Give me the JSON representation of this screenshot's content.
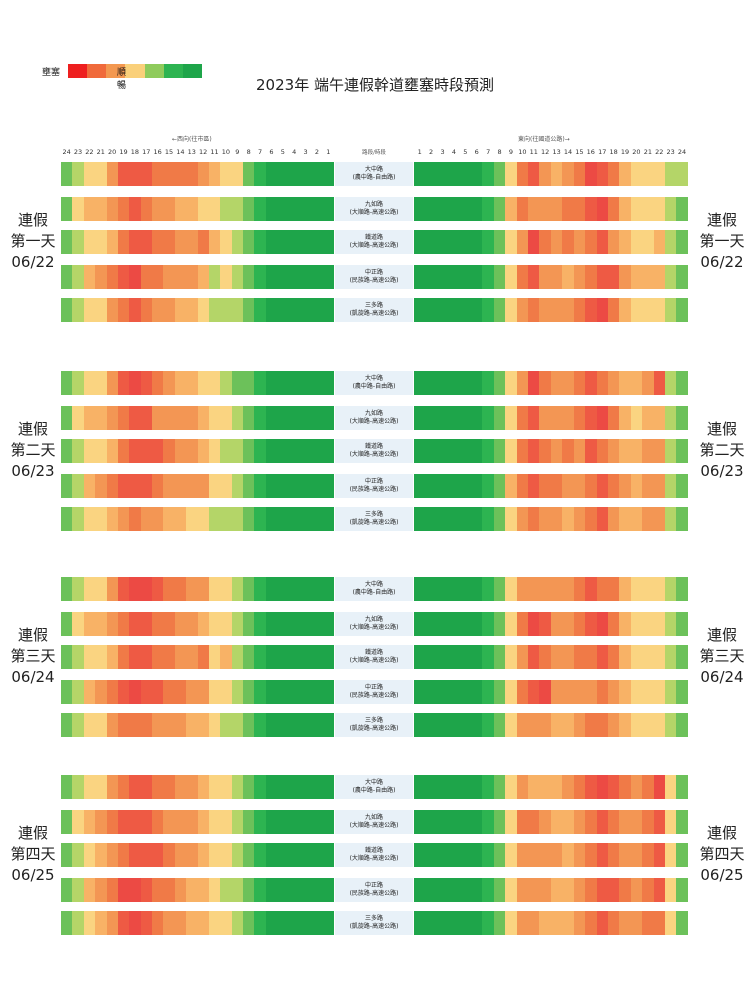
{
  "title": "2023年 端午連假幹道壅塞時段預測",
  "legend": {
    "congested_label": "壅塞",
    "smooth_label": "順暢",
    "colors": [
      "#ee1f1f",
      "#f06a3b",
      "#f39850",
      "#fad07a",
      "#8fcb5c",
      "#2db451",
      "#1ea54a"
    ]
  },
  "header": {
    "west_label": "←西向(往市區)",
    "east_label": "東向(往國道公路)→",
    "road_header": "路段/時段"
  },
  "hours_west": [
    "24",
    "23",
    "22",
    "21",
    "20",
    "19",
    "18",
    "17",
    "16",
    "15",
    "14",
    "13",
    "12",
    "11",
    "10",
    "9",
    "8",
    "7",
    "6",
    "5",
    "4",
    "3",
    "2",
    "1"
  ],
  "hours_east": [
    "1",
    "2",
    "3",
    "4",
    "5",
    "6",
    "7",
    "8",
    "9",
    "10",
    "11",
    "12",
    "13",
    "14",
    "15",
    "16",
    "17",
    "18",
    "19",
    "20",
    "21",
    "22",
    "23",
    "24"
  ],
  "roads": [
    {
      "name": "大中路",
      "segment": "(農中路-自由路)"
    },
    {
      "name": "九如路",
      "segment": "(大順路-高速公路)"
    },
    {
      "name": "鐵道路",
      "segment": "(大順路-高速公路)"
    },
    {
      "name": "中正路",
      "segment": "(民族路-高速公路)"
    },
    {
      "name": "三多路",
      "segment": "(凱旋路-高速公路)"
    }
  ],
  "palette": [
    "#1ea54a",
    "#2db451",
    "#6cc15a",
    "#b4d568",
    "#fad481",
    "#f8b266",
    "#f39654",
    "#f07a47",
    "#ee5a44",
    "#ec4a44"
  ],
  "chart_data": {
    "type": "heatmap",
    "x_west": [
      "24",
      "23",
      "22",
      "21",
      "20",
      "19",
      "18",
      "17",
      "16",
      "15",
      "14",
      "13",
      "12",
      "11",
      "10",
      "9",
      "8",
      "7",
      "6",
      "5",
      "4",
      "3",
      "2",
      "1"
    ],
    "x_east": [
      "1",
      "2",
      "3",
      "4",
      "5",
      "6",
      "7",
      "8",
      "9",
      "10",
      "11",
      "12",
      "13",
      "14",
      "15",
      "16",
      "17",
      "18",
      "19",
      "20",
      "21",
      "22",
      "23",
      "24"
    ],
    "scale": "0 = 順暢 ... 9 = 壅塞",
    "days": [
      {
        "label1": "連假",
        "label2": "第一天",
        "date": "06/22",
        "west": [
          [
            2,
            3,
            4,
            4,
            6,
            8,
            8,
            8,
            7,
            7,
            7,
            7,
            6,
            5,
            4,
            4,
            2,
            1,
            0,
            0,
            0,
            0,
            0,
            0
          ],
          [
            2,
            4,
            5,
            5,
            6,
            7,
            8,
            7,
            6,
            6,
            5,
            5,
            4,
            4,
            3,
            3,
            2,
            1,
            0,
            0,
            0,
            0,
            0,
            0
          ],
          [
            2,
            3,
            4,
            4,
            5,
            7,
            8,
            8,
            7,
            7,
            6,
            6,
            7,
            5,
            4,
            3,
            2,
            1,
            0,
            0,
            0,
            0,
            0,
            0
          ],
          [
            2,
            3,
            5,
            6,
            7,
            8,
            9,
            7,
            7,
            6,
            6,
            6,
            5,
            3,
            4,
            3,
            2,
            1,
            0,
            0,
            0,
            0,
            0,
            0
          ],
          [
            2,
            3,
            4,
            4,
            6,
            7,
            8,
            7,
            6,
            6,
            5,
            5,
            4,
            3,
            3,
            3,
            2,
            1,
            0,
            0,
            0,
            0,
            0,
            0
          ]
        ],
        "east": [
          [
            0,
            0,
            0,
            0,
            0,
            0,
            1,
            2,
            4,
            7,
            8,
            6,
            5,
            6,
            7,
            9,
            8,
            7,
            5,
            4,
            4,
            4,
            3,
            3
          ],
          [
            0,
            0,
            0,
            0,
            0,
            0,
            1,
            2,
            5,
            7,
            6,
            6,
            6,
            7,
            7,
            8,
            9,
            7,
            5,
            4,
            4,
            4,
            3,
            2
          ],
          [
            0,
            0,
            0,
            0,
            0,
            0,
            1,
            2,
            4,
            6,
            9,
            7,
            6,
            7,
            6,
            7,
            8,
            6,
            5,
            4,
            4,
            5,
            3,
            2
          ],
          [
            0,
            0,
            0,
            0,
            0,
            0,
            1,
            2,
            4,
            7,
            8,
            6,
            6,
            5,
            6,
            7,
            8,
            8,
            6,
            5,
            5,
            5,
            3,
            2
          ],
          [
            0,
            0,
            0,
            0,
            0,
            0,
            1,
            2,
            4,
            6,
            7,
            6,
            6,
            6,
            7,
            8,
            9,
            7,
            5,
            4,
            4,
            4,
            3,
            2
          ]
        ]
      },
      {
        "label1": "連假",
        "label2": "第二天",
        "date": "06/23",
        "west": [
          [
            2,
            3,
            4,
            4,
            6,
            8,
            9,
            8,
            7,
            6,
            5,
            5,
            4,
            4,
            3,
            2,
            2,
            1,
            0,
            0,
            0,
            0,
            0,
            0
          ],
          [
            2,
            4,
            5,
            5,
            6,
            7,
            8,
            8,
            6,
            6,
            6,
            6,
            5,
            4,
            4,
            3,
            2,
            1,
            0,
            0,
            0,
            0,
            0,
            0
          ],
          [
            2,
            3,
            4,
            4,
            5,
            7,
            8,
            8,
            8,
            7,
            6,
            6,
            5,
            4,
            3,
            3,
            2,
            1,
            0,
            0,
            0,
            0,
            0,
            0
          ],
          [
            2,
            3,
            5,
            6,
            7,
            8,
            8,
            8,
            7,
            6,
            6,
            6,
            6,
            4,
            4,
            3,
            2,
            1,
            0,
            0,
            0,
            0,
            0,
            0
          ],
          [
            2,
            3,
            4,
            4,
            5,
            6,
            7,
            6,
            6,
            5,
            5,
            4,
            4,
            3,
            3,
            3,
            2,
            1,
            0,
            0,
            0,
            0,
            0,
            0
          ]
        ],
        "east": [
          [
            0,
            0,
            0,
            0,
            0,
            0,
            1,
            2,
            4,
            6,
            9,
            7,
            6,
            6,
            7,
            8,
            7,
            6,
            5,
            5,
            6,
            8,
            3,
            2
          ],
          [
            0,
            0,
            0,
            0,
            0,
            0,
            1,
            2,
            4,
            7,
            8,
            6,
            6,
            6,
            7,
            8,
            9,
            7,
            5,
            4,
            5,
            5,
            3,
            2
          ],
          [
            0,
            0,
            0,
            0,
            0,
            0,
            1,
            2,
            4,
            7,
            8,
            7,
            6,
            7,
            6,
            8,
            7,
            6,
            5,
            5,
            6,
            6,
            3,
            2
          ],
          [
            0,
            0,
            0,
            0,
            0,
            0,
            1,
            2,
            5,
            7,
            8,
            7,
            7,
            6,
            6,
            7,
            8,
            7,
            6,
            5,
            6,
            6,
            3,
            2
          ],
          [
            0,
            0,
            0,
            0,
            0,
            0,
            1,
            2,
            4,
            6,
            7,
            6,
            6,
            5,
            6,
            7,
            8,
            6,
            5,
            5,
            6,
            6,
            3,
            2
          ]
        ]
      },
      {
        "label1": "連假",
        "label2": "第三天",
        "date": "06/24",
        "west": [
          [
            2,
            3,
            4,
            4,
            6,
            8,
            9,
            9,
            8,
            7,
            7,
            6,
            6,
            4,
            4,
            3,
            2,
            1,
            0,
            0,
            0,
            0,
            0,
            0
          ],
          [
            2,
            4,
            5,
            5,
            6,
            7,
            8,
            8,
            7,
            7,
            6,
            6,
            5,
            4,
            4,
            3,
            2,
            1,
            0,
            0,
            0,
            0,
            0,
            0
          ],
          [
            2,
            3,
            4,
            4,
            5,
            7,
            8,
            8,
            7,
            7,
            6,
            6,
            7,
            4,
            5,
            3,
            2,
            1,
            0,
            0,
            0,
            0,
            0,
            0
          ],
          [
            2,
            3,
            5,
            6,
            7,
            8,
            9,
            8,
            8,
            7,
            7,
            6,
            6,
            4,
            4,
            3,
            2,
            1,
            0,
            0,
            0,
            0,
            0,
            0
          ],
          [
            2,
            3,
            4,
            4,
            6,
            7,
            7,
            7,
            6,
            6,
            6,
            5,
            5,
            4,
            3,
            3,
            2,
            1,
            0,
            0,
            0,
            0,
            0,
            0
          ]
        ],
        "east": [
          [
            0,
            0,
            0,
            0,
            0,
            0,
            1,
            2,
            4,
            6,
            6,
            6,
            6,
            6,
            7,
            8,
            7,
            7,
            5,
            4,
            4,
            4,
            3,
            2
          ],
          [
            0,
            0,
            0,
            0,
            0,
            0,
            1,
            2,
            4,
            7,
            9,
            8,
            6,
            6,
            7,
            8,
            9,
            7,
            5,
            4,
            4,
            4,
            3,
            2
          ],
          [
            0,
            0,
            0,
            0,
            0,
            0,
            1,
            2,
            4,
            6,
            8,
            7,
            6,
            6,
            7,
            7,
            8,
            7,
            5,
            4,
            4,
            4,
            3,
            2
          ],
          [
            0,
            0,
            0,
            0,
            0,
            0,
            1,
            2,
            4,
            7,
            8,
            9,
            6,
            6,
            6,
            6,
            7,
            6,
            5,
            4,
            4,
            4,
            3,
            2
          ],
          [
            0,
            0,
            0,
            0,
            0,
            0,
            1,
            2,
            4,
            6,
            6,
            6,
            5,
            5,
            6,
            7,
            7,
            6,
            5,
            4,
            4,
            4,
            3,
            2
          ]
        ]
      },
      {
        "label1": "連假",
        "label2": "第四天",
        "date": "06/25",
        "west": [
          [
            2,
            3,
            4,
            4,
            6,
            7,
            8,
            8,
            7,
            7,
            6,
            6,
            5,
            4,
            4,
            3,
            2,
            1,
            0,
            0,
            0,
            0,
            0,
            0
          ],
          [
            2,
            4,
            5,
            6,
            7,
            8,
            8,
            8,
            7,
            6,
            6,
            6,
            5,
            4,
            4,
            3,
            2,
            1,
            0,
            0,
            0,
            0,
            0,
            0
          ],
          [
            2,
            3,
            4,
            5,
            6,
            7,
            8,
            8,
            8,
            7,
            6,
            6,
            5,
            4,
            4,
            3,
            2,
            1,
            0,
            0,
            0,
            0,
            0,
            0
          ],
          [
            2,
            3,
            5,
            6,
            7,
            9,
            9,
            8,
            7,
            7,
            6,
            5,
            5,
            4,
            3,
            3,
            2,
            1,
            0,
            0,
            0,
            0,
            0,
            0
          ],
          [
            2,
            3,
            4,
            5,
            6,
            8,
            9,
            8,
            7,
            6,
            6,
            5,
            5,
            4,
            4,
            3,
            2,
            1,
            0,
            0,
            0,
            0,
            0,
            0
          ]
        ],
        "east": [
          [
            0,
            0,
            0,
            0,
            0,
            0,
            1,
            2,
            4,
            6,
            5,
            5,
            5,
            6,
            7,
            8,
            9,
            8,
            7,
            6,
            7,
            9,
            4,
            2
          ],
          [
            0,
            0,
            0,
            0,
            0,
            0,
            1,
            2,
            4,
            7,
            7,
            6,
            5,
            5,
            6,
            7,
            8,
            7,
            6,
            6,
            7,
            8,
            4,
            2
          ],
          [
            0,
            0,
            0,
            0,
            0,
            0,
            1,
            2,
            4,
            6,
            6,
            6,
            6,
            5,
            6,
            7,
            8,
            7,
            6,
            6,
            7,
            8,
            4,
            2
          ],
          [
            0,
            0,
            0,
            0,
            0,
            0,
            1,
            2,
            4,
            6,
            6,
            6,
            5,
            5,
            6,
            7,
            8,
            8,
            7,
            6,
            7,
            8,
            4,
            2
          ],
          [
            0,
            0,
            0,
            0,
            0,
            0,
            1,
            2,
            4,
            6,
            6,
            5,
            5,
            5,
            6,
            7,
            8,
            7,
            6,
            6,
            7,
            7,
            4,
            2
          ]
        ]
      }
    ]
  }
}
